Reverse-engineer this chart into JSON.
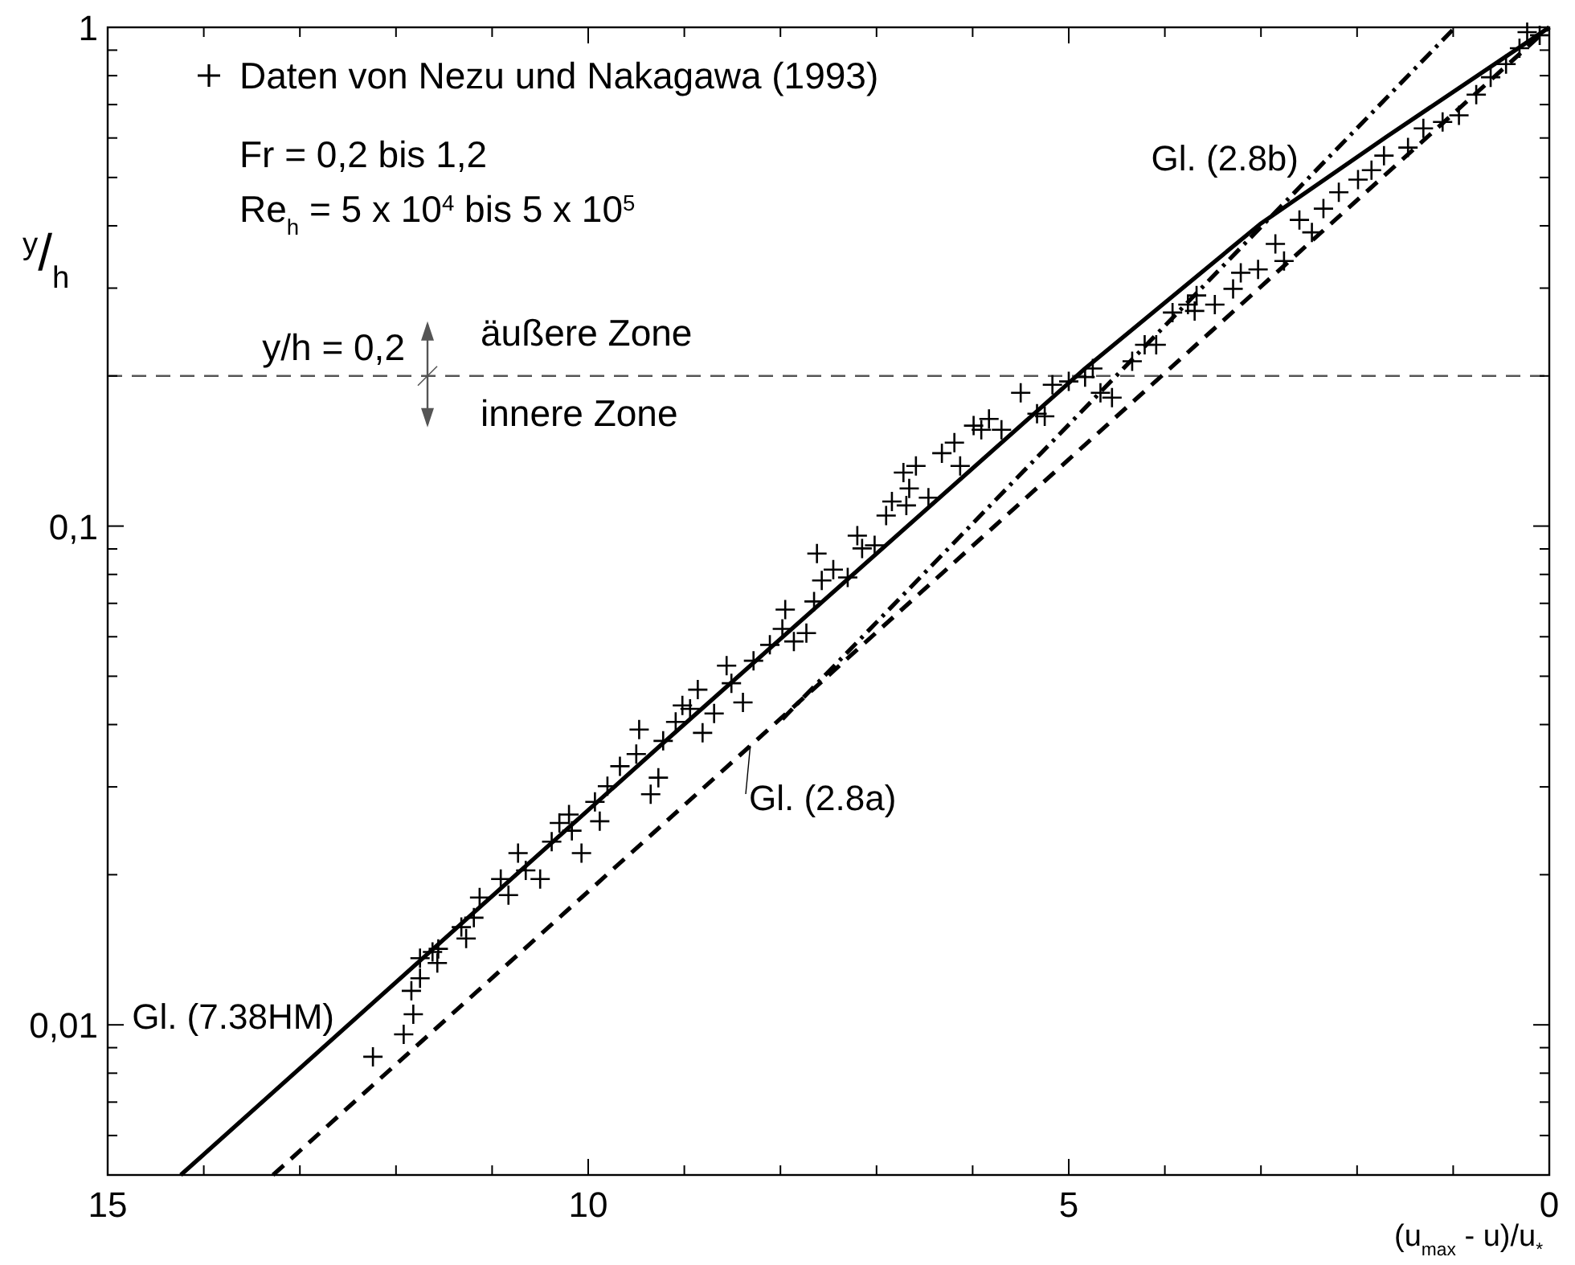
{
  "chart_data": {
    "type": "scatter",
    "xlabel": "(u$_{max}$ - u)/u$_{*}$",
    "ylabel": "$^{y}$/$_{h}$",
    "log": "y",
    "grid": false,
    "legend": "top left",
    "xlim": [
      15,
      0
    ],
    "ylim": [
      0.005,
      1
    ],
    "xticks": [
      15,
      {
        "value": 14,
        "label": null
      },
      {
        "value": 13,
        "label": null
      },
      {
        "value": 12,
        "label": null
      },
      {
        "value": 11,
        "label": null
      },
      10,
      {
        "value": 9,
        "label": null
      },
      {
        "value": 8,
        "label": null
      },
      {
        "value": 7,
        "label": null
      },
      {
        "value": 6,
        "label": null
      },
      5,
      {
        "value": 4,
        "label": null
      },
      {
        "value": 3,
        "label": null
      },
      {
        "value": 2,
        "label": null
      },
      {
        "value": 1,
        "label": null
      },
      0
    ],
    "yticks": [
      {
        "value": 0.005,
        "label": null
      },
      {
        "value": 0.006,
        "label": null
      },
      {
        "value": 0.007,
        "label": null
      },
      {
        "value": 0.008,
        "label": null
      },
      {
        "value": 0.009,
        "label": null
      },
      {
        "value": 0.01,
        "label": "0,01"
      },
      {
        "value": 0.02,
        "label": null
      },
      {
        "value": 0.03,
        "label": null
      },
      {
        "value": 0.04,
        "label": null
      },
      {
        "value": 0.05,
        "label": null
      },
      {
        "value": 0.06,
        "label": null
      },
      {
        "value": 0.07,
        "label": null
      },
      {
        "value": 0.08,
        "label": null
      },
      {
        "value": 0.09,
        "label": null
      },
      {
        "value": 0.1,
        "label": "0,1"
      },
      {
        "value": 0.2,
        "label": null
      },
      {
        "value": 0.3,
        "label": null
      },
      {
        "value": 0.4,
        "label": null
      },
      {
        "value": 0.5,
        "label": null
      },
      {
        "value": 0.6,
        "label": null
      },
      {
        "value": 0.7,
        "label": null
      },
      {
        "value": 0.8,
        "label": null
      },
      {
        "value": 0.9,
        "label": null
      },
      1
    ],
    "ref_lines": [
      {
        "axis": "y",
        "value": 0.2,
        "label": "y/h = 0,2",
        "color": "#555555",
        "line_style": "dashed"
      }
    ],
    "annotations": [
      "Fr = 0,2 bis 1,2",
      "Re$_{h}$ = 5 x 10$^{4}$ bis 5 x 10$^{5}$",
      "äußere Zone",
      "innere Zone"
    ],
    "series": [
      {
        "name": "Daten von Nezu und Nakagawa (1993)",
        "marker": "cross",
        "color": "#000000",
        "x": [
          12.24,
          11.92,
          11.82,
          11.84,
          11.75,
          11.75,
          11.62,
          11.56,
          11.57,
          11.32,
          11.27,
          11.19,
          11.13,
          10.91,
          10.83,
          10.73,
          10.65,
          10.5,
          10.38,
          10.3,
          10.2,
          10.17,
          10.07,
          9.93,
          9.88,
          9.8,
          9.67,
          9.5,
          9.47,
          9.35,
          9.27,
          9.22,
          9.09,
          9.02,
          8.94,
          8.86,
          8.81,
          8.69,
          8.56,
          8.51,
          8.39,
          8.28,
          8.11,
          7.98,
          7.95,
          7.86,
          7.73,
          7.65,
          7.62,
          7.57,
          7.45,
          7.3,
          7.2,
          7.15,
          7.02,
          6.9,
          6.84,
          6.72,
          6.66,
          6.69,
          6.59,
          6.46,
          6.32,
          6.19,
          6.13,
          5.99,
          5.91,
          5.83,
          5.7,
          5.5,
          5.33,
          5.25,
          5.17,
          5.0,
          4.83,
          4.75,
          4.67,
          4.55,
          4.34,
          4.21,
          4.09,
          3.92,
          3.76,
          3.69,
          3.67,
          3.48,
          3.29,
          3.21,
          3.03,
          2.85,
          2.76,
          2.6,
          2.47,
          2.35,
          2.19,
          1.99,
          1.85,
          1.72,
          1.47,
          1.31,
          1.11,
          0.94,
          0.76,
          0.61,
          0.45,
          0.31,
          0.23,
          0.1
        ],
        "values": [
          0.00863,
          0.00957,
          0.0105,
          0.0117,
          0.0124,
          0.0136,
          0.014,
          0.0142,
          0.0133,
          0.0157,
          0.0149,
          0.0164,
          0.018,
          0.0196,
          0.0182,
          0.0221,
          0.0204,
          0.0196,
          0.0233,
          0.0254,
          0.0264,
          0.0245,
          0.0221,
          0.028,
          0.0256,
          0.0301,
          0.033,
          0.0349,
          0.0391,
          0.029,
          0.0313,
          0.0371,
          0.0405,
          0.0437,
          0.043,
          0.047,
          0.0385,
          0.0421,
          0.0525,
          0.0484,
          0.0443,
          0.0537,
          0.0578,
          0.0622,
          0.068,
          0.0587,
          0.061,
          0.0706,
          0.0881,
          0.0778,
          0.0818,
          0.0789,
          0.0957,
          0.0902,
          0.0915,
          0.105,
          0.112,
          0.128,
          0.119,
          0.11,
          0.132,
          0.114,
          0.14,
          0.147,
          0.132,
          0.159,
          0.156,
          0.164,
          0.156,
          0.185,
          0.168,
          0.166,
          0.192,
          0.195,
          0.199,
          0.207,
          0.185,
          0.181,
          0.214,
          0.231,
          0.231,
          0.268,
          0.278,
          0.27,
          0.29,
          0.278,
          0.299,
          0.322,
          0.327,
          0.368,
          0.34,
          0.411,
          0.388,
          0.433,
          0.467,
          0.495,
          0.517,
          0.553,
          0.574,
          0.627,
          0.646,
          0.666,
          0.733,
          0.794,
          0.844,
          0.908,
          0.978,
          0.964
        ]
      },
      {
        "name": "Gl. (7.38HM)",
        "type": "line",
        "marker": "none",
        "line_style": "solid",
        "color": "#000000",
        "x": [
          14.24,
          9.25,
          4.83,
          3.01,
          1.69,
          0
        ],
        "values": [
          0.005,
          0.0363,
          0.207,
          0.403,
          0.604,
          1
        ]
      },
      {
        "name": "Gl. (2.8a)",
        "type": "line",
        "marker": "none",
        "line_style": "dashed",
        "color": "#000000",
        "x": [
          13.28,
          0
        ],
        "values": [
          0.005,
          1
        ]
      },
      {
        "name": "Gl. (2.8b)",
        "type": "line",
        "marker": "none",
        "line_style": "dashdot",
        "color": "#000000",
        "x": [
          7.98,
          0.98
        ],
        "values": [
          0.041,
          1
        ]
      }
    ]
  }
}
